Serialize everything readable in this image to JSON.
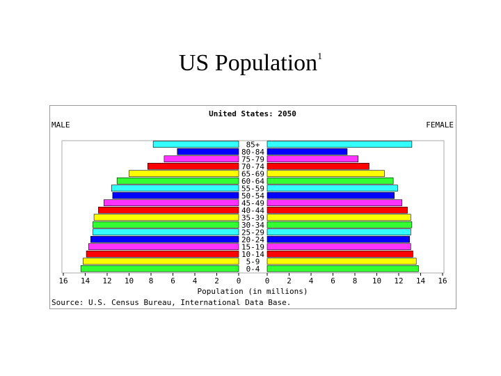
{
  "slide": {
    "title": "US Population",
    "title_superscript": "1"
  },
  "chart_data": {
    "type": "bar",
    "subtype": "population-pyramid",
    "title": "United States: 2050",
    "left_label": "MALE",
    "right_label": "FEMALE",
    "xlabel": "Population (in millions)",
    "source": "Source: U.S. Census Bureau, International Data Base.",
    "xlim": [
      0,
      16
    ],
    "x_ticks": [
      "16",
      "14",
      "12",
      "10",
      "8",
      "6",
      "4",
      "2",
      "0",
      "0",
      "2",
      "4",
      "6",
      "8",
      "10",
      "12",
      "14",
      "16"
    ],
    "categories": [
      "85+",
      "80-84",
      "75-79",
      "70-74",
      "65-69",
      "60-64",
      "55-59",
      "50-54",
      "45-49",
      "40-44",
      "35-39",
      "30-34",
      "25-29",
      "20-24",
      "15-19",
      "10-14",
      "5-9",
      "0-4"
    ],
    "series": [
      {
        "name": "MALE",
        "values": [
          7.8,
          5.6,
          6.8,
          8.3,
          10.0,
          11.1,
          11.6,
          11.5,
          12.3,
          12.8,
          13.2,
          13.3,
          13.3,
          13.5,
          13.7,
          13.9,
          14.2,
          14.4
        ]
      },
      {
        "name": "FEMALE",
        "values": [
          13.2,
          7.3,
          8.3,
          9.3,
          10.7,
          11.5,
          11.9,
          11.6,
          12.3,
          12.8,
          13.1,
          13.2,
          13.1,
          13.0,
          13.1,
          13.3,
          13.6,
          13.8
        ]
      }
    ],
    "bar_colors": [
      "#33ffff",
      "#0000ff",
      "#ff33ff",
      "#ff0000",
      "#ffff00",
      "#33ff33",
      "#33ffff",
      "#0000ff",
      "#ff33ff",
      "#ff0000",
      "#ffff00",
      "#33ff33",
      "#33ffff",
      "#0000ff",
      "#ff33ff",
      "#ff0000",
      "#ffff00",
      "#33ff33"
    ],
    "grid": false
  }
}
